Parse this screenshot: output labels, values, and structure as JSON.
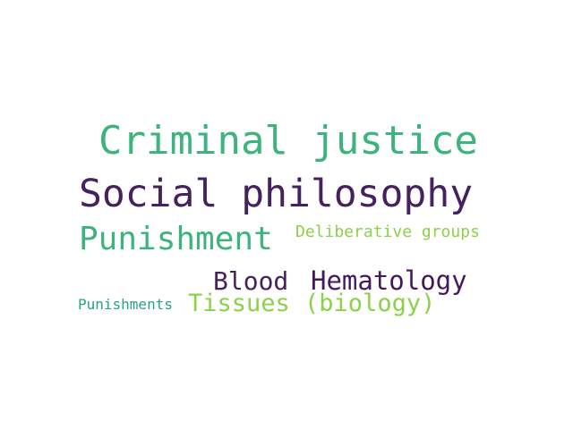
{
  "words": [
    {
      "text": "Criminal justice",
      "color": "#3cb47c"
    },
    {
      "text": "Social philosophy",
      "color": "#45215f"
    },
    {
      "text": "Punishment",
      "color": "#3cb47c"
    },
    {
      "text": "Deliberative groups",
      "color": "#8cd14a"
    },
    {
      "text": "Blood",
      "color": "#45215f"
    },
    {
      "text": "Hematology",
      "color": "#45175d"
    },
    {
      "text": "Punishments",
      "color": "#26a384"
    },
    {
      "text": "Tissues (biology)",
      "color": "#8cd14a"
    }
  ]
}
